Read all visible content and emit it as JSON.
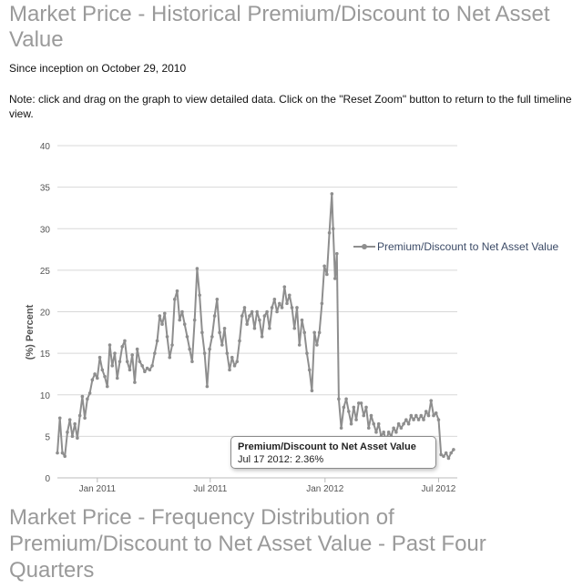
{
  "page": {
    "title": "Market Price - Historical Premium/Discount to Net Asset Value",
    "since": "Since inception on October 29, 2010",
    "note": "Note: click and drag on the graph to view detailed data. Click on the \"Reset Zoom\" button to return to the full timeline view.",
    "section2_title": "Market Price - Frequency Distribution of Premium/Discount to Net Asset Value - Past Four Quarters"
  },
  "chart_data": {
    "type": "line",
    "ylabel": "(%) Percent",
    "ylim": [
      0,
      40
    ],
    "yticks": [
      0,
      5,
      10,
      15,
      20,
      25,
      30,
      35,
      40
    ],
    "xlim": [
      "2010-10-29",
      "2012-07-31"
    ],
    "xticks": [
      {
        "label": "Jan 2011",
        "date": "2011-01-01"
      },
      {
        "label": "Jul 2011",
        "date": "2011-07-01"
      },
      {
        "label": "Jan 2012",
        "date": "2012-01-01"
      },
      {
        "label": "Jul 2012",
        "date": "2012-07-01"
      }
    ],
    "grid": true,
    "legend_position": "right",
    "color": "#8e8e8e",
    "series": [
      {
        "name": "Premium/Discount to Net Asset Value",
        "points": [
          [
            "2010-10-29",
            3.0
          ],
          [
            "2010-11-02",
            7.2
          ],
          [
            "2010-11-06",
            3.0
          ],
          [
            "2010-11-10",
            2.6
          ],
          [
            "2010-11-14",
            5.5
          ],
          [
            "2010-11-18",
            7.0
          ],
          [
            "2010-11-22",
            5.0
          ],
          [
            "2010-11-26",
            6.5
          ],
          [
            "2010-11-30",
            4.8
          ],
          [
            "2010-12-04",
            7.5
          ],
          [
            "2010-12-08",
            9.8
          ],
          [
            "2010-12-12",
            7.2
          ],
          [
            "2010-12-16",
            9.5
          ],
          [
            "2010-12-20",
            10.2
          ],
          [
            "2010-12-24",
            11.8
          ],
          [
            "2010-12-28",
            12.5
          ],
          [
            "2011-01-01",
            12.0
          ],
          [
            "2011-01-05",
            14.5
          ],
          [
            "2011-01-09",
            13.0
          ],
          [
            "2011-01-13",
            12.2
          ],
          [
            "2011-01-17",
            11.0
          ],
          [
            "2011-01-21",
            16.0
          ],
          [
            "2011-01-25",
            13.5
          ],
          [
            "2011-01-29",
            15.0
          ],
          [
            "2011-02-02",
            12.0
          ],
          [
            "2011-02-06",
            14.0
          ],
          [
            "2011-02-10",
            15.8
          ],
          [
            "2011-02-14",
            16.5
          ],
          [
            "2011-02-18",
            14.0
          ],
          [
            "2011-02-22",
            13.0
          ],
          [
            "2011-02-26",
            14.8
          ],
          [
            "2011-03-02",
            11.5
          ],
          [
            "2011-03-06",
            15.5
          ],
          [
            "2011-03-10",
            14.0
          ],
          [
            "2011-03-14",
            13.5
          ],
          [
            "2011-03-18",
            12.8
          ],
          [
            "2011-03-22",
            13.2
          ],
          [
            "2011-03-26",
            13.0
          ],
          [
            "2011-03-30",
            13.5
          ],
          [
            "2011-04-03",
            15.0
          ],
          [
            "2011-04-07",
            16.5
          ],
          [
            "2011-04-11",
            19.5
          ],
          [
            "2011-04-15",
            18.5
          ],
          [
            "2011-04-19",
            19.8
          ],
          [
            "2011-04-23",
            17.0
          ],
          [
            "2011-04-27",
            14.5
          ],
          [
            "2011-05-01",
            16.0
          ],
          [
            "2011-05-05",
            21.5
          ],
          [
            "2011-05-09",
            22.5
          ],
          [
            "2011-05-13",
            19.0
          ],
          [
            "2011-05-17",
            20.0
          ],
          [
            "2011-05-21",
            18.5
          ],
          [
            "2011-05-25",
            17.0
          ],
          [
            "2011-05-29",
            15.5
          ],
          [
            "2011-06-02",
            14.0
          ],
          [
            "2011-06-06",
            19.0
          ],
          [
            "2011-06-10",
            25.2
          ],
          [
            "2011-06-14",
            22.0
          ],
          [
            "2011-06-18",
            17.5
          ],
          [
            "2011-06-22",
            15.0
          ],
          [
            "2011-06-26",
            11.0
          ],
          [
            "2011-06-30",
            15.5
          ],
          [
            "2011-07-04",
            17.0
          ],
          [
            "2011-07-08",
            19.5
          ],
          [
            "2011-07-12",
            21.5
          ],
          [
            "2011-07-16",
            17.5
          ],
          [
            "2011-07-20",
            16.0
          ],
          [
            "2011-07-24",
            18.0
          ],
          [
            "2011-07-28",
            15.0
          ],
          [
            "2011-08-01",
            13.0
          ],
          [
            "2011-08-05",
            14.5
          ],
          [
            "2011-08-09",
            13.5
          ],
          [
            "2011-08-13",
            14.0
          ],
          [
            "2011-08-17",
            16.5
          ],
          [
            "2011-08-21",
            19.5
          ],
          [
            "2011-08-25",
            20.5
          ],
          [
            "2011-08-29",
            18.5
          ],
          [
            "2011-09-02",
            19.5
          ],
          [
            "2011-09-06",
            20.0
          ],
          [
            "2011-09-10",
            18.0
          ],
          [
            "2011-09-14",
            20.0
          ],
          [
            "2011-09-18",
            19.0
          ],
          [
            "2011-09-22",
            17.0
          ],
          [
            "2011-09-26",
            19.5
          ],
          [
            "2011-09-30",
            20.0
          ],
          [
            "2011-10-04",
            18.0
          ],
          [
            "2011-10-08",
            20.5
          ],
          [
            "2011-10-12",
            21.5
          ],
          [
            "2011-10-16",
            20.0
          ],
          [
            "2011-10-20",
            21.0
          ],
          [
            "2011-10-24",
            20.5
          ],
          [
            "2011-10-28",
            23.0
          ],
          [
            "2011-11-01",
            21.0
          ],
          [
            "2011-11-05",
            22.0
          ],
          [
            "2011-11-09",
            20.5
          ],
          [
            "2011-11-13",
            18.0
          ],
          [
            "2011-11-17",
            20.5
          ],
          [
            "2011-11-21",
            16.0
          ],
          [
            "2011-11-25",
            19.0
          ],
          [
            "2011-11-29",
            17.5
          ],
          [
            "2011-12-03",
            15.0
          ],
          [
            "2011-12-07",
            13.0
          ],
          [
            "2011-12-11",
            10.5
          ],
          [
            "2011-12-15",
            17.5
          ],
          [
            "2011-12-19",
            16.0
          ],
          [
            "2011-12-23",
            17.5
          ],
          [
            "2011-12-27",
            21.0
          ],
          [
            "2011-12-31",
            25.5
          ],
          [
            "2012-01-04",
            24.5
          ],
          [
            "2012-01-08",
            29.5
          ],
          [
            "2012-01-12",
            34.2
          ],
          [
            "2012-01-14",
            30.0
          ],
          [
            "2012-01-17",
            24.0
          ],
          [
            "2012-01-20",
            27.0
          ],
          [
            "2012-01-23",
            9.5
          ],
          [
            "2012-01-27",
            6.0
          ],
          [
            "2012-01-31",
            8.5
          ],
          [
            "2012-02-04",
            9.5
          ],
          [
            "2012-02-08",
            8.0
          ],
          [
            "2012-02-12",
            6.5
          ],
          [
            "2012-02-16",
            8.5
          ],
          [
            "2012-02-20",
            7.0
          ],
          [
            "2012-02-24",
            9.0
          ],
          [
            "2012-02-28",
            9.0
          ],
          [
            "2012-03-03",
            7.5
          ],
          [
            "2012-03-07",
            8.5
          ],
          [
            "2012-03-11",
            6.0
          ],
          [
            "2012-03-15",
            7.5
          ],
          [
            "2012-03-19",
            6.5
          ],
          [
            "2012-03-23",
            5.5
          ],
          [
            "2012-03-27",
            6.5
          ],
          [
            "2012-03-31",
            5.0
          ],
          [
            "2012-04-04",
            5.5
          ],
          [
            "2012-04-08",
            4.5
          ],
          [
            "2012-04-12",
            5.5
          ],
          [
            "2012-04-16",
            5.0
          ],
          [
            "2012-04-20",
            6.0
          ],
          [
            "2012-04-24",
            5.5
          ],
          [
            "2012-04-28",
            6.5
          ],
          [
            "2012-05-02",
            6.0
          ],
          [
            "2012-05-06",
            6.5
          ],
          [
            "2012-05-10",
            7.0
          ],
          [
            "2012-05-14",
            6.5
          ],
          [
            "2012-05-18",
            7.5
          ],
          [
            "2012-05-22",
            7.0
          ],
          [
            "2012-05-26",
            7.5
          ],
          [
            "2012-05-30",
            7.0
          ],
          [
            "2012-06-03",
            7.5
          ],
          [
            "2012-06-07",
            7.0
          ],
          [
            "2012-06-11",
            8.0
          ],
          [
            "2012-06-15",
            7.5
          ],
          [
            "2012-06-19",
            9.3
          ],
          [
            "2012-06-23",
            7.5
          ],
          [
            "2012-06-27",
            7.8
          ],
          [
            "2012-07-01",
            7.0
          ],
          [
            "2012-07-05",
            2.8
          ],
          [
            "2012-07-09",
            2.6
          ],
          [
            "2012-07-13",
            3.0
          ],
          [
            "2012-07-17",
            2.36
          ],
          [
            "2012-07-21",
            3.0
          ],
          [
            "2012-07-25",
            3.4
          ]
        ]
      }
    ],
    "tooltip": {
      "title": "Premium/Discount to Net Asset Value",
      "text": "Jul 17 2012: 2.36%"
    }
  }
}
